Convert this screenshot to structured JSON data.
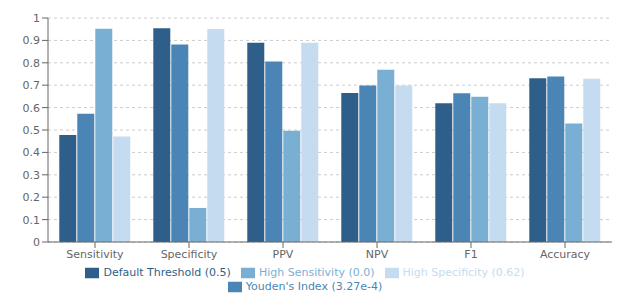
{
  "chart_data": {
    "type": "bar",
    "categories": [
      "Sensitivity",
      "Specificity",
      "PPV",
      "NPV",
      "F1",
      "Accuracy"
    ],
    "series": [
      {
        "name": "Default Threshold (0.5)",
        "color": "#2E5F8A",
        "values": [
          0.478,
          0.954,
          0.889,
          0.665,
          0.619,
          0.731
        ]
      },
      {
        "name": "Youden's Index (3.27e-4)",
        "color": "#4A85B5",
        "values": [
          0.573,
          0.882,
          0.806,
          0.699,
          0.664,
          0.739
        ]
      },
      {
        "name": "High Sensitivity (0.0)",
        "color": "#7AAFD4",
        "values": [
          0.952,
          0.152,
          0.497,
          0.769,
          0.648,
          0.529
        ]
      },
      {
        "name": "High Specificity (0.62)",
        "color": "#C5DCF0",
        "values": [
          0.471,
          0.951,
          0.889,
          0.699,
          0.619,
          0.729
        ]
      }
    ],
    "ylim": [
      0,
      1.0
    ],
    "yticks": [
      0,
      0.1,
      0.2,
      0.3,
      0.4,
      0.5,
      0.6,
      0.7,
      0.8,
      0.9,
      1
    ],
    "grid": true,
    "legend": "bottom"
  }
}
